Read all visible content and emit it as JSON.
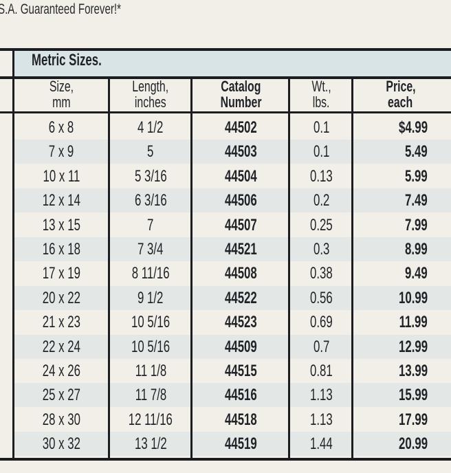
{
  "title": "S.A. Guaranteed Forever!*",
  "section": "Metric Sizes.",
  "columns": [
    {
      "line1": "Size,",
      "line2": "mm"
    },
    {
      "line1": "Length,",
      "line2": "inches"
    },
    {
      "line1": "Catalog",
      "line2": "Number"
    },
    {
      "line1": "Wt.,",
      "line2": "lbs."
    },
    {
      "line1": "Price,",
      "line2": "each"
    }
  ],
  "rows": [
    [
      "6 x 8",
      "4 1/2",
      "44502",
      "0.1",
      "$4.99"
    ],
    [
      "7 x 9",
      "5",
      "44503",
      "0.1",
      "5.49"
    ],
    [
      "10 x 11",
      "5 3/16",
      "44504",
      "0.13",
      "5.99"
    ],
    [
      "12 x 14",
      "6 3/16",
      "44506",
      "0.2",
      "7.49"
    ],
    [
      "13 x 15",
      "7",
      "44507",
      "0.25",
      "7.99"
    ],
    [
      "16 x 18",
      "7 3/4",
      "44521",
      "0.3",
      "8.99"
    ],
    [
      "17 x 19",
      "8 11/16",
      "44508",
      "0.38",
      "9.49"
    ],
    [
      "20 x 22",
      "9 1/2",
      "44522",
      "0.56",
      "10.99"
    ],
    [
      "21 x 23",
      "10 5/16",
      "44523",
      "0.69",
      "11.99"
    ],
    [
      "22 x 24",
      "10 5/16",
      "44509",
      "0.7",
      "12.99"
    ],
    [
      "24 x 26",
      "11 1/8",
      "44515",
      "0.81",
      "13.99"
    ],
    [
      "25 x 27",
      "11 7/8",
      "44516",
      "1.13",
      "15.99"
    ],
    [
      "28 x 30",
      "12 11/16",
      "44518",
      "1.13",
      "17.99"
    ],
    [
      "30 x 32",
      "13 1/2",
      "44519",
      "1.44",
      "20.99"
    ]
  ]
}
